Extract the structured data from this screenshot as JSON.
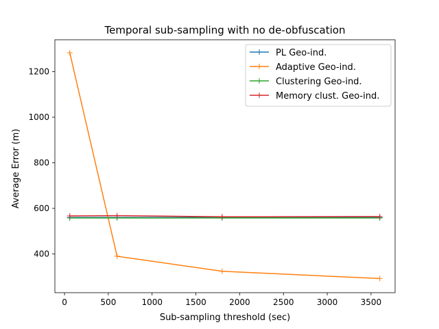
{
  "chart_data": {
    "type": "line",
    "title": "Temporal sub-sampling with no de-obfuscation",
    "xlabel": "Sub-sampling threshold (sec)",
    "ylabel": "Average Error (m)",
    "xlim": [
      -110,
      3775
    ],
    "ylim": [
      230,
      1340
    ],
    "xticks": [
      0,
      500,
      1000,
      1500,
      2000,
      2500,
      3000,
      3500
    ],
    "yticks": [
      400,
      600,
      800,
      1000,
      1200
    ],
    "grid": false,
    "legend_position": "top-right",
    "series": [
      {
        "name": "PL Geo-ind.",
        "color": "#1f77b4",
        "x": [
          60,
          600,
          1800,
          3600
        ],
        "y": [
          560,
          560,
          560,
          560
        ]
      },
      {
        "name": "Adaptive Geo-ind.",
        "color": "#ff7f0e",
        "x": [
          60,
          600,
          1800,
          3600
        ],
        "y": [
          1283,
          390,
          324,
          292
        ]
      },
      {
        "name": "Clustering Geo-ind.",
        "color": "#2ca02c",
        "x": [
          60,
          600,
          1800,
          3600
        ],
        "y": [
          558,
          558,
          558,
          558
        ]
      },
      {
        "name": "Memory clust. Geo-ind.",
        "color": "#d62728",
        "x": [
          60,
          600,
          1800,
          3600
        ],
        "y": [
          567,
          568,
          563,
          564
        ]
      }
    ]
  }
}
